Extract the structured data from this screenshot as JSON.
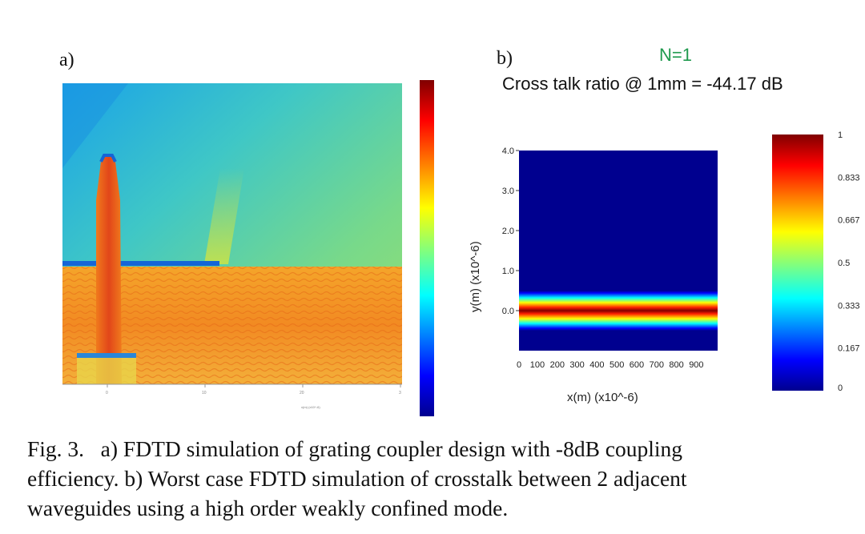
{
  "panel_a": {
    "label": "a)",
    "colorbar_ticks": [
      "",
      "",
      "",
      "",
      "",
      "",
      "",
      ""
    ],
    "x_ticks": [
      "0",
      "10",
      "20",
      "3"
    ],
    "xlabel": "x(m) (x10^-6)"
  },
  "panel_b": {
    "label": "b)",
    "n_label": "N=1",
    "ratio_text": "Cross talk ratio @ 1mm = -44.17 dB"
  },
  "chart_data": [
    {
      "type": "heatmap",
      "title": "",
      "xlabel": "x(m) (x10^-6)",
      "ylabel": "",
      "colormap": "jet",
      "description_values": {
        "x_ticks": [
          "0",
          "10",
          "20",
          "3"
        ]
      }
    },
    {
      "type": "heatmap",
      "title": "Cross talk ratio @ 1mm = -44.17 dB",
      "xlabel": "x(m) (x10^-6)",
      "ylabel": "y(m) (x10^-6)",
      "x_ticks": [
        "0",
        "100",
        "200",
        "300",
        "400",
        "500",
        "600",
        "700",
        "800",
        "900"
      ],
      "y_ticks": [
        "4.0",
        "3.0",
        "2.0",
        "1.0",
        "0.0"
      ],
      "xlim": [
        0,
        1000
      ],
      "ylim": [
        -1.0,
        4.0
      ],
      "colorbar_ticks": [
        "1",
        "0.833",
        "0.667",
        "0.5",
        "0.333",
        "0.167",
        "0"
      ],
      "colorbar_range": [
        0,
        1
      ],
      "band": {
        "y_center": 0.0,
        "half_width": 0.5,
        "peak": 1.0
      },
      "colormap": "jet"
    }
  ],
  "caption": {
    "line1": "Fig. 3.   a) FDTD simulation of grating coupler design with -8dB coupling",
    "line2": "efficiency. b) Worst case FDTD simulation of crosstalk between 2 adjacent",
    "line3": "waveguides using a high order weakly confined mode."
  },
  "colors": {
    "n_label": "#1f9a4e",
    "background_b": "#00008f"
  }
}
